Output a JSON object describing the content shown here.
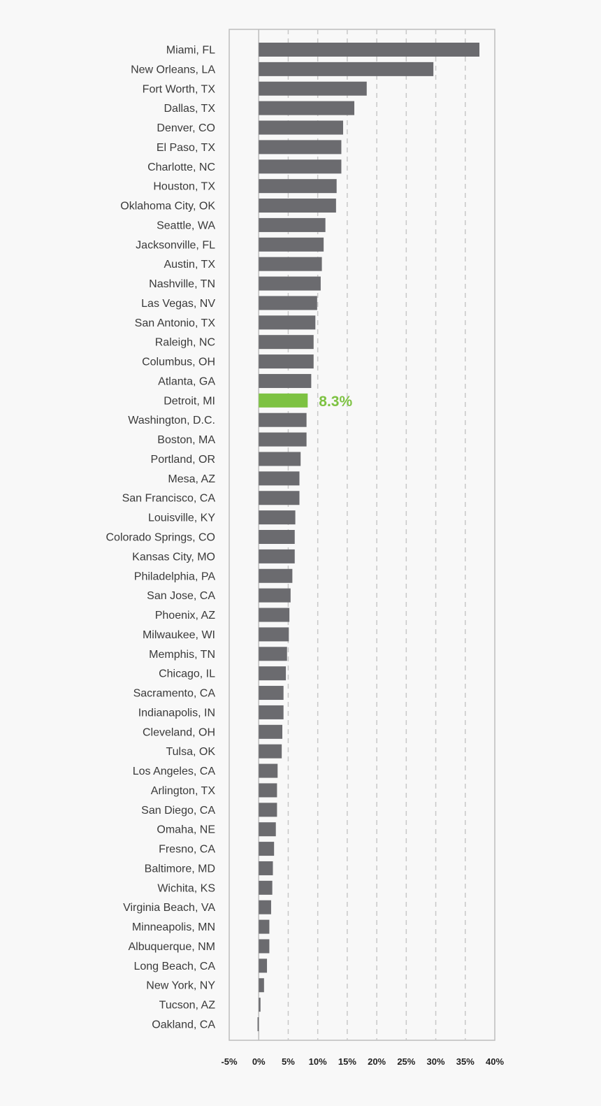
{
  "chart_data": {
    "type": "bar",
    "orientation": "horizontal",
    "title": "",
    "xlabel": "",
    "ylabel": "",
    "xlim": [
      -5,
      40
    ],
    "x_ticks": [
      -5,
      0,
      5,
      10,
      15,
      20,
      25,
      30,
      35,
      40
    ],
    "x_tick_labels": [
      "-5%",
      "0%",
      "5%",
      "10%",
      "15%",
      "20%",
      "25%",
      "30%",
      "35%",
      "40%"
    ],
    "grid": "vertical dashed",
    "bar_color": "#6b6b6f",
    "highlight_color": "#7dc242",
    "highlight": {
      "category": "Detroit, MI",
      "label": "8.3%"
    },
    "categories": [
      "Miami, FL",
      "New Orleans, LA",
      "Fort Worth, TX",
      "Dallas, TX",
      "Denver, CO",
      "El Paso, TX",
      "Charlotte, NC",
      "Houston, TX",
      "Oklahoma City, OK",
      "Seattle, WA",
      "Jacksonville, FL",
      "Austin, TX",
      "Nashville, TN",
      "Las Vegas, NV",
      "San Antonio, TX",
      "Raleigh, NC",
      "Columbus, OH",
      "Atlanta, GA",
      "Detroit, MI",
      "Washington, D.C.",
      "Boston, MA",
      "Portland, OR",
      "Mesa, AZ",
      "San Francisco, CA",
      "Louisville, KY",
      "Colorado Springs, CO",
      "Kansas City, MO",
      "Philadelphia, PA",
      "San Jose, CA",
      "Phoenix, AZ",
      "Milwaukee, WI",
      "Memphis, TN",
      "Chicago, IL",
      "Sacramento, CA",
      "Indianapolis, IN",
      "Cleveland, OH",
      "Tulsa, OK",
      "Los Angeles, CA",
      "Arlington, TX",
      "San Diego, CA",
      "Omaha, NE",
      "Fresno, CA",
      "Baltimore, MD",
      "Wichita, KS",
      "Virginia Beach, VA",
      "Minneapolis, MN",
      "Albuquerque, NM",
      "Long Beach, CA",
      "New York, NY",
      "Tucson, AZ",
      "Oakland, CA"
    ],
    "values": [
      37.4,
      29.6,
      18.3,
      16.2,
      14.3,
      14.0,
      14.0,
      13.2,
      13.1,
      11.3,
      11.0,
      10.7,
      10.5,
      9.9,
      9.6,
      9.3,
      9.3,
      8.9,
      8.3,
      8.1,
      8.1,
      7.1,
      6.9,
      6.9,
      6.2,
      6.1,
      6.1,
      5.7,
      5.4,
      5.2,
      5.1,
      4.8,
      4.6,
      4.2,
      4.2,
      4.0,
      3.9,
      3.2,
      3.1,
      3.1,
      2.9,
      2.6,
      2.4,
      2.3,
      2.1,
      1.8,
      1.8,
      1.4,
      0.9,
      0.3,
      -0.2
    ]
  }
}
